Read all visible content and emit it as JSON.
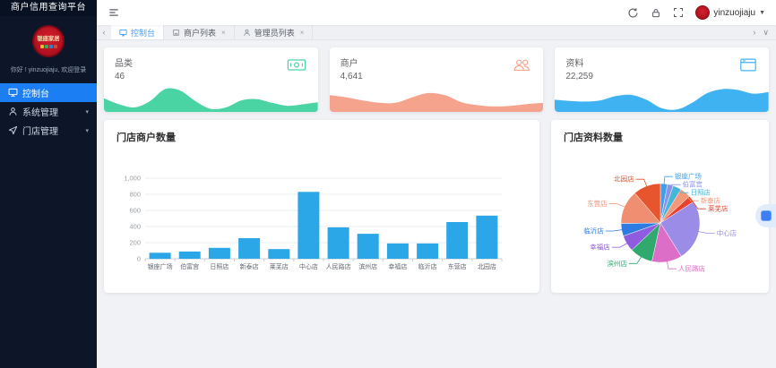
{
  "sidebar": {
    "title": "商户信用查询平台",
    "logo_text": "银座家居",
    "greeting": "你好 ! yinzuojiaju, 欢迎登录",
    "menu": [
      {
        "label": "控制台",
        "icon": "dashboard-icon",
        "active": true
      },
      {
        "label": "系统管理",
        "icon": "user-icon",
        "active": false,
        "expandable": true
      },
      {
        "label": "门店管理",
        "icon": "navigation-icon",
        "active": false,
        "expandable": true
      }
    ]
  },
  "header": {
    "username": "yinzuojiaju"
  },
  "glyphs": {
    "caret_down": "▾",
    "user_caret": "▼",
    "close": "×",
    "chevron_left": "‹",
    "chevron_right": "›",
    "chevron_down": "∨"
  },
  "tabs": [
    {
      "label": "控制台",
      "icon": "monitor-icon",
      "active": true,
      "closable": false
    },
    {
      "label": "商户列表",
      "icon": "shop-icon",
      "active": false,
      "closable": true
    },
    {
      "label": "管理员列表",
      "icon": "person-icon",
      "active": false,
      "closable": true
    }
  ],
  "stat_cards": [
    {
      "label": "品类",
      "value": "46",
      "icon": "banknote-icon",
      "color": "#4ad3a3",
      "trend": [
        45,
        25,
        15,
        35,
        75,
        70,
        35,
        10,
        15,
        38,
        42,
        30,
        20,
        25,
        32
      ]
    },
    {
      "label": "商户",
      "value": "4,641",
      "icon": "users-icon",
      "color": "#f5a38c",
      "trend": [
        55,
        48,
        38,
        30,
        30,
        48,
        62,
        55,
        32,
        22,
        18,
        20,
        26,
        30
      ]
    },
    {
      "label": "资料",
      "value": "22,259",
      "icon": "window-icon",
      "color": "#3fb3f2",
      "trend": [
        40,
        36,
        34,
        38,
        52,
        56,
        40,
        12,
        8,
        30,
        62,
        75,
        72,
        60,
        65
      ]
    }
  ],
  "chart_data": [
    {
      "type": "bar",
      "title": "门店商户数量",
      "categories": [
        "银座广场",
        "伯富宫",
        "日照店",
        "新泰店",
        "莱芜店",
        "中心店",
        "人民路店",
        "滨州店",
        "幸福店",
        "临沂店",
        "东营店",
        "北园店"
      ],
      "values": [
        75,
        90,
        135,
        255,
        120,
        830,
        390,
        310,
        190,
        190,
        455,
        535
      ],
      "xlabel": "",
      "ylabel": "",
      "ylim": [
        0,
        1000
      ],
      "ytick_step": 200,
      "bar_color": "#2ba7e8",
      "grid": true,
      "legend": "none"
    },
    {
      "type": "pie",
      "title": "门店资料数量",
      "labels": [
        "银座广场",
        "伯富宫",
        "日照店",
        "新泰店",
        "莱芜店",
        "中心店",
        "人民路店",
        "滨州店",
        "幸福店",
        "临沂店",
        "东营店",
        "北园店"
      ],
      "values": [
        650,
        520,
        780,
        980,
        620,
        5600,
        2750,
        2100,
        1500,
        1150,
        3100,
        2509
      ],
      "colors": [
        "#3f9fe8",
        "#8a93ec",
        "#49b5d6",
        "#f2997a",
        "#e8432e",
        "#9b8ce8",
        "#dd6ec8",
        "#2fa96e",
        "#8f5be0",
        "#2e7be4",
        "#f08e72",
        "#e6552e"
      ],
      "legend": "none",
      "label_position": "outside"
    }
  ]
}
